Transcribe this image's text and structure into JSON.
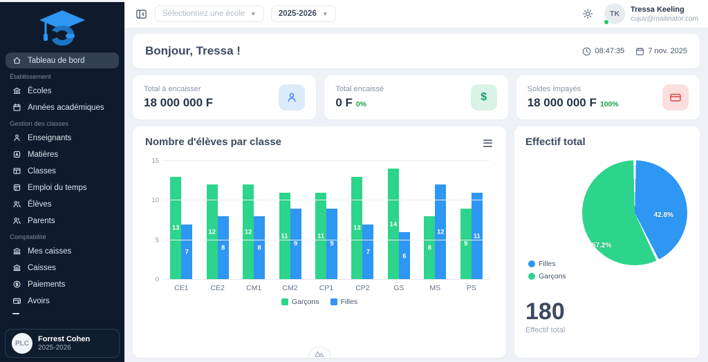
{
  "sidebar": {
    "items": [
      {
        "label": "Tableau de bord",
        "icon": "home-icon",
        "active": true
      },
      {
        "label": "Établissement",
        "type": "section"
      },
      {
        "label": "Écoles",
        "icon": "school-icon"
      },
      {
        "label": "Années académiques",
        "icon": "calendar-icon"
      },
      {
        "label": "Gestion des classes",
        "type": "section"
      },
      {
        "label": "Enseignants",
        "icon": "teacher-icon"
      },
      {
        "label": "Matières",
        "icon": "subject-icon"
      },
      {
        "label": "Classes",
        "icon": "classroom-icon"
      },
      {
        "label": "Emploi du temps",
        "icon": "timetable-icon"
      },
      {
        "label": "Élèves",
        "icon": "students-icon"
      },
      {
        "label": "Parents",
        "icon": "parents-icon"
      },
      {
        "label": "Comptabilité",
        "type": "section"
      },
      {
        "label": "Mes caisses",
        "icon": "bank-icon"
      },
      {
        "label": "Caisses",
        "icon": "bank-icon"
      },
      {
        "label": "Paiements",
        "icon": "dollar-circle-icon"
      },
      {
        "label": "Avoirs",
        "icon": "card-x-icon"
      }
    ],
    "user_card": {
      "initials": "PLC",
      "name": "Forrest Cohen",
      "year": "2025-2026"
    }
  },
  "topbar": {
    "school_select_placeholder": "Sélectionnez une école",
    "year_select_value": "2025-2026",
    "user": {
      "initials": "TK",
      "name": "Tressa Keeling",
      "email": "cujuv@mailinator.com"
    }
  },
  "greeting": {
    "title": "Bonjour, Tressa !",
    "time": "08:47:35",
    "date": "7 nov. 2025"
  },
  "stats": [
    {
      "label": "Total à encaisser",
      "value": "18 000 000 F",
      "percent": "",
      "icon": "user-icon"
    },
    {
      "label": "Total encaissé",
      "value": "0 F",
      "percent": "0%",
      "icon": "dollar-icon"
    },
    {
      "label": "Soldes impayés",
      "value": "18 000 000 F",
      "percent": "100%",
      "icon": "credit-card-icon"
    }
  ],
  "chart_data": [
    {
      "type": "bar",
      "title": "Nombre d'élèves par classe",
      "categories": [
        "CE1",
        "CE2",
        "CM1",
        "CM2",
        "CP1",
        "CP2",
        "GS",
        "MS",
        "PS"
      ],
      "series": [
        {
          "name": "Garçons",
          "color": "#2dd48b",
          "values": [
            13,
            12,
            12,
            11,
            11,
            13,
            14,
            8,
            9
          ]
        },
        {
          "name": "Filles",
          "color": "#2e96f3",
          "values": [
            7,
            8,
            8,
            9,
            9,
            7,
            6,
            12,
            11
          ]
        }
      ],
      "ylim": [
        0,
        15
      ],
      "yticks": [
        0,
        5,
        10,
        15
      ],
      "grid": true,
      "legend_position": "bottom"
    },
    {
      "type": "pie",
      "title": "Effectif total",
      "slices": [
        {
          "label": "Filles",
          "value": 42.8,
          "pct_label": "42.8%",
          "color": "#2e96f3"
        },
        {
          "label": "Garçons",
          "value": 57.2,
          "pct_label": "57.2%",
          "color": "#2dd48b"
        }
      ],
      "total": "180",
      "total_label": "Effectif total",
      "legend_position": "left"
    }
  ]
}
